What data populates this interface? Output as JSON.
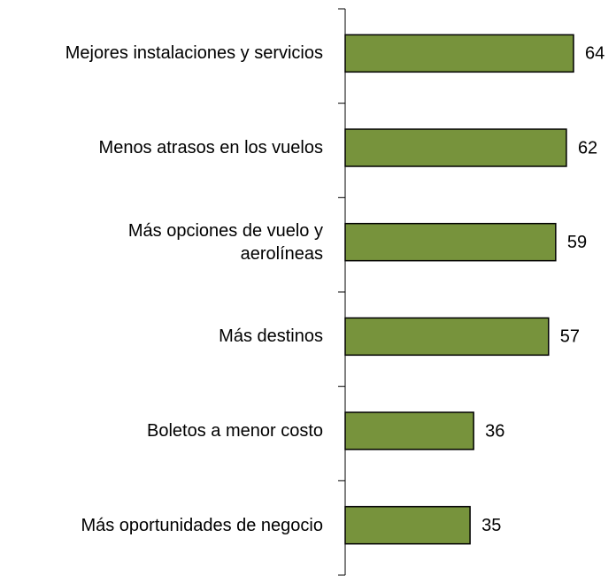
{
  "chart_data": {
    "type": "bar",
    "orientation": "horizontal",
    "categories": [
      "Mejores instalaciones y servicios",
      "Menos atrasos en los vuelos",
      "Más opciones de vuelo y\naerolíneas",
      "Más destinos",
      "Boletos a menor costo",
      "Más oportunidades de negocio"
    ],
    "values": [
      64,
      62,
      59,
      57,
      36,
      35
    ],
    "color": "#77933c"
  }
}
